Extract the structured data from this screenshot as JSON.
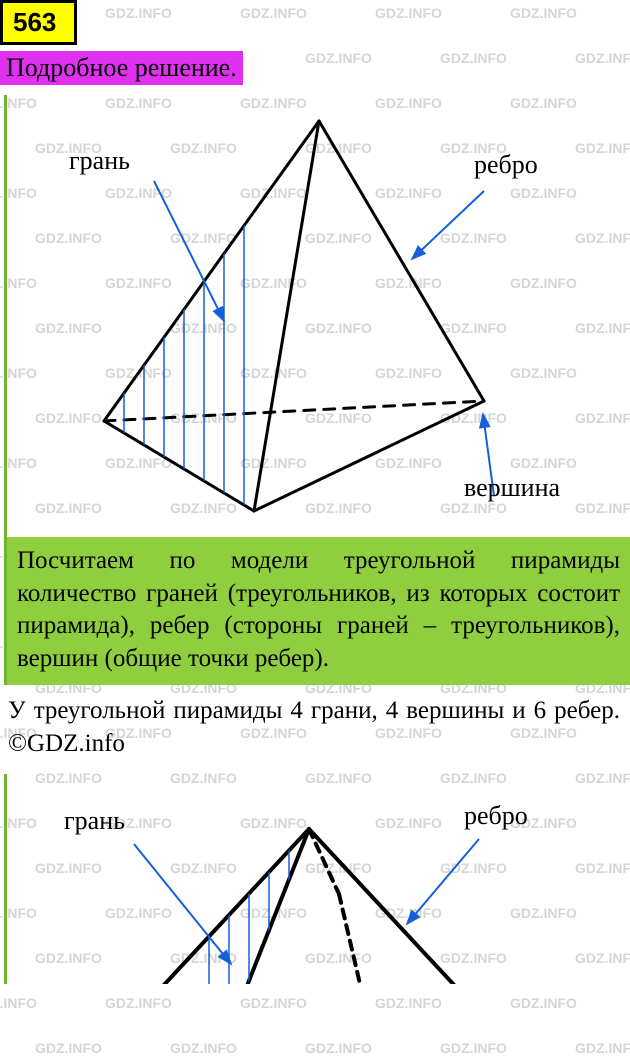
{
  "watermark_text": "GDZ.INFO",
  "watermark_color": "#d5d5d5",
  "task_number": "563",
  "subtitle": "Подробное решение.",
  "diagram1": {
    "labels": {
      "face": "грань",
      "edge": "ребро",
      "vertex": "вершина"
    },
    "colors": {
      "line": "#000000",
      "arrow": "#1560d8",
      "hatch": "#1560d8",
      "label": "#000000",
      "green_border": "#6fb52f"
    },
    "stroke_width": 3,
    "hatch_lines": 9
  },
  "green_text": "Посчитаем по модели треугольной пира­миды количество граней (треугольников, из которых состоит пирамида), ребер (стороны граней – треугольников), вер­шин (общие точки ребер).",
  "paragraph": "У треугольной пирамиды 4 грани, 4 вер­шины и 6 ребер. ©GDZ.info",
  "diagram2": {
    "labels": {
      "face": "грань",
      "edge": "ребро"
    },
    "colors": {
      "line": "#000000",
      "arrow": "#1560d8",
      "hatch": "#1560d8",
      "label": "#000000"
    },
    "stroke_width": 4
  },
  "colors": {
    "task_bg": "#ffff00",
    "subtitle_bg": "#e030f0",
    "green_bg": "#8fcf3f"
  }
}
